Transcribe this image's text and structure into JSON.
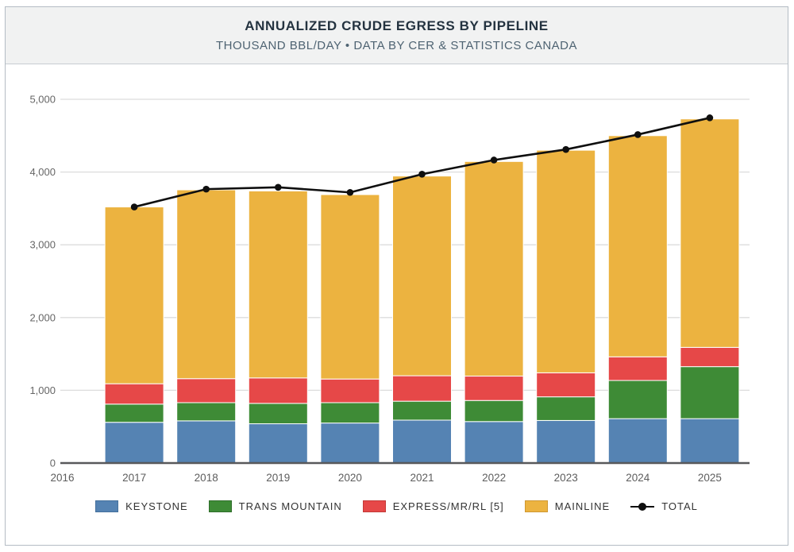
{
  "header": {
    "title": "ANNUALIZED CRUDE EGRESS BY PIPELINE",
    "subtitle": "THOUSAND BBL/DAY • DATA BY CER & STATISTICS CANADA"
  },
  "chart_data": {
    "type": "stacked-bar+line",
    "title": "ANNUALIZED CRUDE EGRESS BY PIPELINE",
    "subtitle": "THOUSAND BBL/DAY • DATA BY CER & STATISTICS CANADA",
    "units": "THOUSAND BBL/DAY",
    "x_categories": [
      "2016",
      "2017",
      "2018",
      "2019",
      "2020",
      "2021",
      "2022",
      "2023",
      "2024",
      "2025"
    ],
    "series": [
      {
        "name": "KEYSTONE",
        "color": "#5583b3",
        "border": "#44709c",
        "values": [
          null,
          560,
          580,
          540,
          550,
          590,
          570,
          585,
          610,
          610
        ]
      },
      {
        "name": "TRANS MOUNTAIN",
        "color": "#3e8b36",
        "border": "#2f6e2a",
        "values": [
          null,
          250,
          250,
          280,
          280,
          260,
          290,
          325,
          525,
          715
        ]
      },
      {
        "name": "EXPRESS/MR/RL [5]",
        "color": "#e64848",
        "border": "#c33a38",
        "values": [
          null,
          280,
          330,
          350,
          325,
          350,
          335,
          330,
          325,
          265
        ]
      },
      {
        "name": "MAINLINE",
        "color": "#ecb340",
        "border": "#cf9832",
        "values": [
          null,
          2430,
          2595,
          2570,
          2535,
          2745,
          2950,
          3060,
          3040,
          3140
        ]
      }
    ],
    "line_series": {
      "name": "TOTAL",
      "color": "#0f0f0f",
      "values": [
        null,
        3520,
        3765,
        3790,
        3720,
        3970,
        4165,
        4310,
        4515,
        4745
      ]
    },
    "ylim": [
      0,
      5000
    ],
    "yticks": [
      {
        "value": 0,
        "label": "0"
      },
      {
        "value": 1000,
        "label": "1,000"
      },
      {
        "value": 2000,
        "label": "2,000"
      },
      {
        "value": 3000,
        "label": "3,000"
      },
      {
        "value": 4000,
        "label": "4,000"
      },
      {
        "value": 5000,
        "label": "5,000"
      }
    ],
    "grid": true,
    "legend_position": "bottom",
    "colors": {
      "grid": "#dcdcdc",
      "axis_line": "#58595b",
      "ytick_text": "#666666",
      "xtick_text": "#5d5d5d"
    }
  }
}
